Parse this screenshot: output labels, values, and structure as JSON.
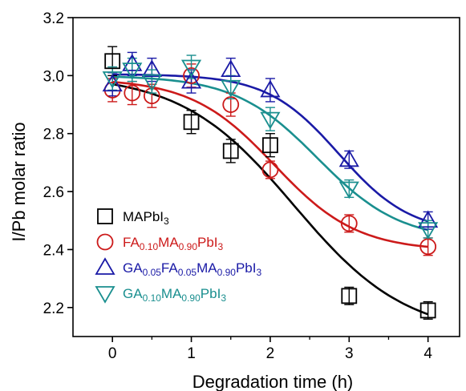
{
  "chart_data": {
    "type": "scatter",
    "title": "",
    "xlabel": "Degradation time (h)",
    "ylabel": "I/Pb molar ratio",
    "xlim": [
      -0.5,
      4.4
    ],
    "ylim": [
      2.1,
      3.2
    ],
    "xticks": [
      0,
      1,
      2,
      3,
      4
    ],
    "yticks": [
      2.2,
      2.4,
      2.6,
      2.8,
      3.0,
      3.2
    ],
    "x_tick_labels": [
      "0",
      "1",
      "2",
      "3",
      "4"
    ],
    "y_tick_labels": [
      "2.2",
      "2.4",
      "2.6",
      "2.8",
      "3.0",
      "3.2"
    ],
    "grid": false,
    "legend_position": "bottom-left",
    "series": [
      {
        "name": "MAPbI3",
        "label_parts": [
          [
            "MAPbI",
            ""
          ],
          [
            "3",
            "sub"
          ]
        ],
        "color": "#000000",
        "marker": "square",
        "x": [
          0,
          1,
          1.5,
          2,
          3,
          4
        ],
        "y": [
          3.05,
          2.84,
          2.74,
          2.76,
          2.24,
          2.19
        ],
        "err": [
          0.05,
          0.04,
          0.04,
          0.04,
          0.03,
          0.03
        ],
        "fit": {
          "top": 3.005,
          "bottom": 2.1,
          "x0": 2.3,
          "k": 1.4
        }
      },
      {
        "name": "FA0.10MA0.90PbI3",
        "label_parts": [
          [
            "FA",
            ""
          ],
          [
            "0.10",
            "sub"
          ],
          [
            "MA",
            ""
          ],
          [
            "0.90",
            "sub"
          ],
          [
            "PbI",
            ""
          ],
          [
            "3",
            "sub"
          ]
        ],
        "color": "#cc1a1a",
        "marker": "circle",
        "x": [
          0,
          0.25,
          0.5,
          1,
          1.5,
          2,
          3,
          4
        ],
        "y": [
          2.95,
          2.94,
          2.93,
          3.0,
          2.9,
          2.675,
          2.49,
          2.41
        ],
        "err": [
          0.04,
          0.04,
          0.04,
          0.04,
          0.04,
          0.03,
          0.03,
          0.03
        ],
        "fit": {
          "top": 2.99,
          "bottom": 2.395,
          "x0": 2.05,
          "k": 1.9
        }
      },
      {
        "name": "GA0.05FA0.05MA0.90PbI3",
        "label_parts": [
          [
            "GA",
            ""
          ],
          [
            "0.05",
            "sub"
          ],
          [
            "FA",
            ""
          ],
          [
            "0.05",
            "sub"
          ],
          [
            "MA",
            ""
          ],
          [
            "0.90",
            "sub"
          ],
          [
            "PbI",
            ""
          ],
          [
            "3",
            "sub"
          ]
        ],
        "color": "#1a1aa6",
        "marker": "triangle-up",
        "x": [
          0,
          0.25,
          0.5,
          1,
          1.5,
          2,
          3,
          4
        ],
        "y": [
          2.97,
          3.04,
          3.02,
          2.98,
          3.02,
          2.95,
          2.71,
          2.5
        ],
        "err": [
          0.04,
          0.04,
          0.04,
          0.04,
          0.04,
          0.04,
          0.03,
          0.03
        ],
        "fit": {
          "top": 3.005,
          "bottom": 2.455,
          "x0": 2.87,
          "k": 2.2
        }
      },
      {
        "name": "GA0.10MA0.90PbI3",
        "label_parts": [
          [
            "GA",
            ""
          ],
          [
            "0.10",
            "sub"
          ],
          [
            "MA",
            ""
          ],
          [
            "0.90",
            "sub"
          ],
          [
            "PbI",
            ""
          ],
          [
            "3",
            "sub"
          ]
        ],
        "color": "#1a8f8f",
        "marker": "triangle-down",
        "x": [
          0,
          0.25,
          0.5,
          1,
          1.5,
          2,
          3,
          4
        ],
        "y": [
          2.99,
          3.02,
          2.98,
          3.03,
          2.96,
          2.85,
          2.61,
          2.47
        ],
        "err": [
          0.04,
          0.04,
          0.04,
          0.04,
          0.04,
          0.04,
          0.03,
          0.03
        ],
        "fit": {
          "top": 3.0,
          "bottom": 2.43,
          "x0": 2.6,
          "k": 1.9
        }
      }
    ]
  }
}
